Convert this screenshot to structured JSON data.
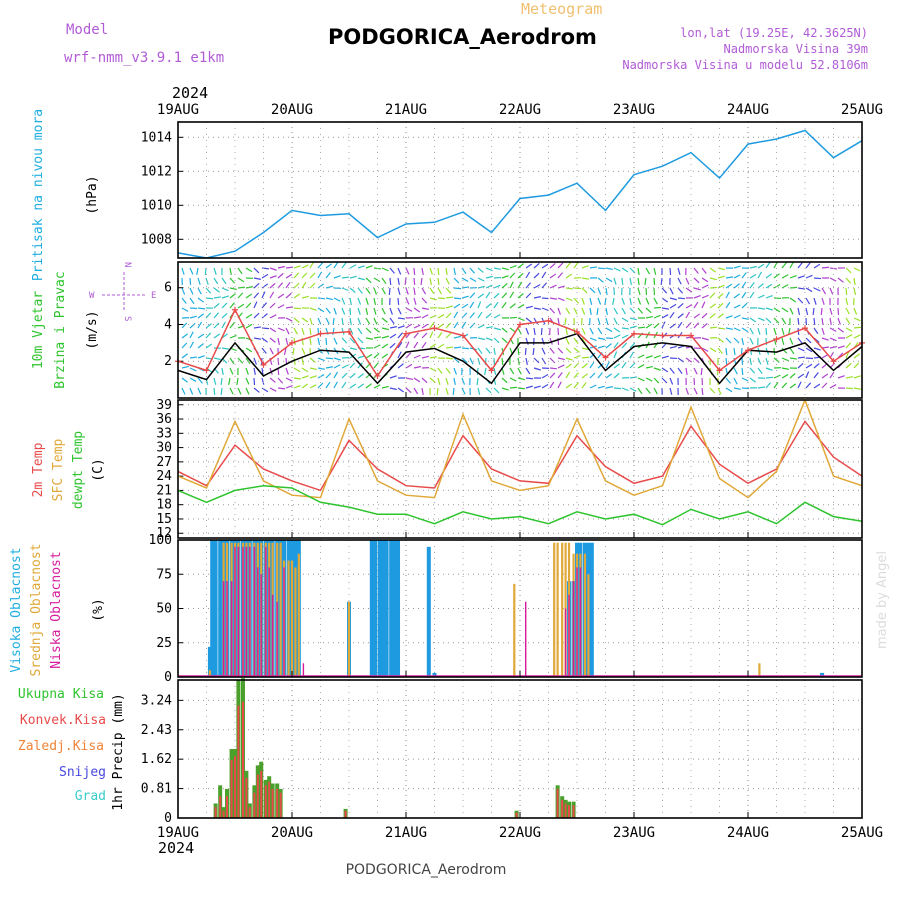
{
  "header": {
    "model_label": "Model",
    "model_name": "wrf-nmm_v3.9.1  e1km",
    "product": "Meteogram",
    "station": "PODGORICA_Aerodrom",
    "lonlat": "lon,lat (19.25E, 42.3625N)",
    "elevation": "Nadmorska Visina 39m",
    "model_elevation": "Nadmorska Visina u modelu 52.8106m",
    "footer_station": "PODGORICA_Aerodrom",
    "credit": "made by Angel"
  },
  "time_axis": {
    "year": "2024",
    "labels": [
      "19AUG",
      "20AUG",
      "21AUG",
      "22AUG",
      "23AUG",
      "24AUG",
      "25AUG"
    ]
  },
  "colors": {
    "pressure": "#1e9be0",
    "wind_speed": "#000000",
    "wind_gust": "#e84a4a",
    "t2m": "#e84a4a",
    "tsfc": "#e0a838",
    "dewpoint": "#2ec42e",
    "cloud_high": "#1e9be0",
    "cloud_mid": "#e0a838",
    "cloud_low": "#d61b9c",
    "precip_total": "#4aa02a",
    "precip_conv": "#e84a4a",
    "precip_frz": "#f0843a",
    "precip_snow": "#4848e0",
    "precip_grad": "#3ccccc"
  },
  "chart_data": [
    {
      "type": "line",
      "panel": "pressure",
      "ylabel_lines": [
        "Pritisak na nivou mora",
        "(hPa)"
      ],
      "yticks": [
        "1008",
        "1010",
        "1012",
        "1014"
      ],
      "ylim": [
        1006.9,
        1014.9
      ],
      "x_days": [
        0,
        0.25,
        0.5,
        0.75,
        1.0,
        1.25,
        1.5,
        1.75,
        2.0,
        2.25,
        2.5,
        2.75,
        3.0,
        3.25,
        3.5,
        3.75,
        4.0,
        4.25,
        4.5,
        4.75,
        5.0,
        5.25,
        5.5,
        5.75,
        6.0
      ],
      "series": [
        {
          "values": [
            1007.2,
            1006.9,
            1007.3,
            1008.4,
            1009.7,
            1009.4,
            1009.5,
            1008.1,
            1008.9,
            1009.0,
            1009.6,
            1008.4,
            1010.4,
            1010.6,
            1011.3,
            1009.7,
            1011.8,
            1012.3,
            1013.1,
            1011.6,
            1013.6,
            1013.9,
            1014.4,
            1012.8,
            1013.8
          ]
        }
      ]
    },
    {
      "type": "line",
      "panel": "wind",
      "ylabel_lines": [
        "10m Vjetar",
        "Brzina i Pravac",
        "(m/s)"
      ],
      "compass_labels": [
        "W",
        "E",
        "N",
        "S"
      ],
      "yticks": [
        "2",
        "4",
        "6"
      ],
      "ylim": [
        0,
        7.4
      ],
      "x_days": [
        0,
        0.25,
        0.5,
        0.75,
        1.0,
        1.25,
        1.5,
        1.75,
        2.0,
        2.25,
        2.5,
        2.75,
        3.0,
        3.25,
        3.5,
        3.75,
        4.0,
        4.25,
        4.5,
        4.75,
        5.0,
        5.25,
        5.5,
        5.75,
        6.0
      ],
      "series": [
        {
          "values": [
            1.5,
            1.0,
            3.0,
            1.2,
            2.0,
            2.6,
            2.5,
            0.8,
            2.5,
            2.7,
            2.0,
            0.8,
            3.0,
            3.0,
            3.5,
            1.5,
            2.8,
            3.0,
            2.8,
            0.8,
            2.6,
            2.5,
            3.0,
            1.5,
            2.8
          ]
        },
        {
          "values": [
            2.0,
            1.5,
            4.8,
            1.8,
            3.0,
            3.5,
            3.6,
            1.2,
            3.5,
            3.8,
            3.4,
            1.5,
            4.0,
            4.2,
            3.6,
            2.2,
            3.5,
            3.4,
            3.4,
            1.5,
            2.6,
            3.2,
            3.8,
            2.0,
            3.0
          ]
        }
      ]
    },
    {
      "type": "line",
      "panel": "temperature",
      "ylabel_lines": [
        "2m Temp",
        "SFC Temp",
        "dewpt Temp",
        "(C)"
      ],
      "yticks": [
        "12",
        "15",
        "18",
        "21",
        "24",
        "27",
        "30",
        "33",
        "36",
        "39"
      ],
      "ylim": [
        11,
        40
      ],
      "x_days": [
        0,
        0.25,
        0.5,
        0.75,
        1.0,
        1.25,
        1.5,
        1.75,
        2.0,
        2.25,
        2.5,
        2.75,
        3.0,
        3.25,
        3.5,
        3.75,
        4.0,
        4.25,
        4.5,
        4.75,
        5.0,
        5.25,
        5.5,
        5.75,
        6.0
      ],
      "series": [
        {
          "values": [
            25.0,
            22.0,
            30.5,
            25.5,
            23.0,
            21.0,
            31.5,
            25.5,
            22.0,
            21.5,
            32.5,
            25.5,
            23.0,
            22.5,
            32.5,
            26.0,
            22.5,
            24.0,
            34.5,
            26.5,
            22.5,
            25.5,
            35.5,
            28.0,
            24.0
          ]
        },
        {
          "values": [
            24.0,
            21.5,
            35.5,
            23.0,
            20.0,
            19.5,
            36.0,
            23.0,
            20.0,
            19.5,
            37.0,
            23.0,
            21.0,
            22.0,
            36.0,
            23.0,
            20.0,
            22.0,
            38.5,
            23.5,
            19.5,
            25.0,
            40.0,
            24.0,
            22.0
          ]
        },
        {
          "values": [
            21.0,
            18.5,
            21.0,
            22.0,
            21.5,
            18.5,
            17.5,
            16.0,
            16.0,
            14.0,
            16.5,
            15.0,
            15.5,
            14.0,
            16.5,
            15.0,
            16.0,
            13.8,
            17.0,
            15.0,
            16.5,
            14.0,
            18.5,
            15.5,
            14.5
          ]
        }
      ]
    },
    {
      "type": "bar",
      "panel": "clouds",
      "ylabel_lines": [
        "Visoka Oblacnost",
        "Srednja Oblacnost",
        "Niska Oblacnost",
        "(%)"
      ],
      "yticks": [
        "0",
        "25",
        "50",
        "75",
        "100"
      ],
      "ylim": [
        0,
        100
      ],
      "x_days": [
        0.28,
        0.3,
        0.33,
        0.37,
        0.4,
        0.43,
        0.47,
        0.5,
        0.53,
        0.57,
        0.6,
        0.63,
        0.67,
        0.7,
        0.73,
        0.77,
        0.8,
        0.83,
        0.87,
        0.9,
        0.93,
        0.97,
        1.0,
        1.03,
        1.06,
        1.1,
        1.5,
        1.7,
        1.73,
        1.77,
        1.8,
        1.83,
        1.87,
        1.9,
        1.93,
        2.2,
        2.25,
        2.95,
        3.05,
        3.3,
        3.33,
        3.37,
        3.4,
        3.43,
        3.47,
        3.5,
        3.53,
        3.57,
        3.6,
        3.63,
        5.1,
        5.65
      ],
      "series": [
        {
          "name": "Visoka Oblacnost",
          "values": [
            22,
            100,
            100,
            100,
            100,
            100,
            100,
            100,
            100,
            100,
            100,
            100,
            100,
            100,
            100,
            100,
            100,
            100,
            100,
            100,
            100,
            100,
            100,
            100,
            100,
            0,
            55,
            100,
            100,
            100,
            100,
            100,
            100,
            100,
            100,
            95,
            3,
            0,
            0,
            0,
            0,
            0,
            0,
            70,
            70,
            98,
            98,
            98,
            98,
            98,
            0,
            3
          ]
        },
        {
          "name": "Srednja Oblacnost",
          "values": [
            5,
            0,
            0,
            0,
            98,
            98,
            98,
            98,
            98,
            98,
            98,
            98,
            98,
            98,
            98,
            98,
            98,
            98,
            98,
            98,
            85,
            85,
            85,
            80,
            90,
            0,
            55,
            0,
            0,
            0,
            0,
            0,
            0,
            0,
            0,
            0,
            0,
            68,
            0,
            98,
            98,
            98,
            98,
            98,
            90,
            90,
            90,
            90,
            75,
            0,
            10,
            0
          ]
        },
        {
          "name": "Niska Oblacnost",
          "values": [
            0,
            0,
            0,
            0,
            70,
            70,
            70,
            95,
            95,
            95,
            95,
            95,
            95,
            80,
            75,
            95,
            80,
            60,
            55,
            0,
            80,
            0,
            0,
            0,
            0,
            10,
            0,
            0,
            0,
            0,
            0,
            0,
            0,
            0,
            0,
            0,
            0,
            0,
            55,
            0,
            0,
            0,
            50,
            60,
            70,
            80,
            80,
            0,
            0,
            0,
            0,
            0
          ]
        }
      ]
    },
    {
      "type": "bar",
      "panel": "precip",
      "ylabel_lines": [
        "1hr Precip (mm)"
      ],
      "legend": [
        "Ukupna Kisa",
        "Konvek.Kisa",
        "Zaledj.Kisa",
        "Snijeg",
        "Grad"
      ],
      "yticks": [
        "0",
        "0.81",
        "1.62",
        "2.43",
        "3.24"
      ],
      "ylim": [
        0,
        3.8
      ],
      "x_days": [
        0.33,
        0.37,
        0.4,
        0.43,
        0.47,
        0.5,
        0.53,
        0.57,
        0.6,
        0.63,
        0.67,
        0.7,
        0.73,
        0.77,
        0.8,
        0.83,
        0.87,
        0.9,
        0.93,
        0.97,
        1.0,
        1.03,
        1.47,
        2.97,
        3.33,
        3.37,
        3.4,
        3.43,
        3.47
      ],
      "series": [
        {
          "name": "Ukupna Kisa",
          "values": [
            0.4,
            0.9,
            0.3,
            0.8,
            1.9,
            1.9,
            3.8,
            3.85,
            1.3,
            0.4,
            0.9,
            1.45,
            1.55,
            1.05,
            1.15,
            0.95,
            0.95,
            0.8,
            0.0,
            0.0,
            0.0,
            0.0,
            0.25,
            0.2,
            0.9,
            0.6,
            0.5,
            0.45,
            0.45
          ]
        },
        {
          "name": "Konvek.Kisa",
          "values": [
            0.3,
            0.6,
            0.2,
            0.6,
            1.6,
            1.7,
            3.1,
            3.2,
            1.1,
            0.3,
            0.7,
            1.2,
            1.3,
            0.9,
            1.0,
            0.8,
            0.8,
            0.7,
            0.0,
            0.0,
            0.0,
            0.0,
            0.2,
            0.15,
            0.8,
            0.5,
            0.4,
            0.35,
            0.35
          ]
        }
      ]
    }
  ]
}
